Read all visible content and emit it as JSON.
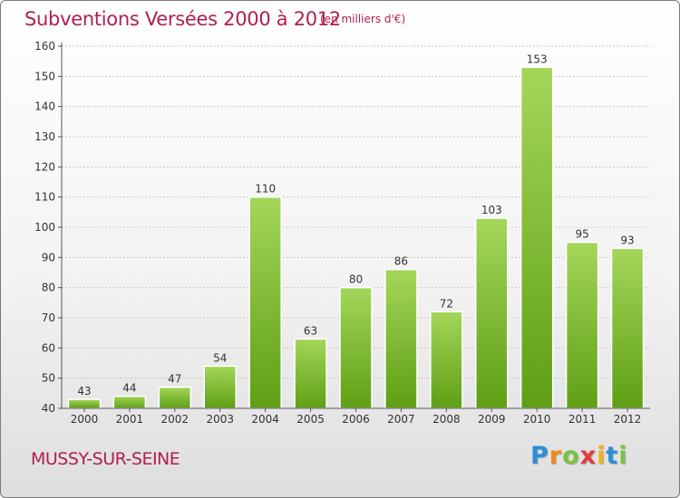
{
  "title": "Subventions Versées 2000 à 2012",
  "unit_note": "(en milliers d'€)",
  "location": "MUSSY-SUR-SEINE",
  "logo": {
    "letters": [
      {
        "char": "P",
        "color": "#2a8fd6"
      },
      {
        "char": "r",
        "color": "#ef8a1a"
      },
      {
        "char": "o",
        "color": "#7cc242"
      },
      {
        "char": "x",
        "color": "#e23b3b"
      },
      {
        "char": "i",
        "color": "#f2b31a"
      },
      {
        "char": "t",
        "color": "#2a8fd6"
      },
      {
        "char": "i",
        "color": "#7cc242"
      }
    ]
  },
  "chart_data": {
    "type": "bar",
    "categories": [
      "2000",
      "2001",
      "2002",
      "2003",
      "2004",
      "2005",
      "2006",
      "2007",
      "2008",
      "2009",
      "2010",
      "2011",
      "2012"
    ],
    "values": [
      43,
      44,
      47,
      54,
      110,
      63,
      80,
      86,
      72,
      103,
      153,
      95,
      93
    ],
    "ylim": [
      40,
      160
    ],
    "yticks": [
      40,
      50,
      60,
      70,
      80,
      90,
      100,
      110,
      120,
      130,
      140,
      150,
      160
    ],
    "grid": true,
    "bar_color_top": "#a4d65a",
    "bar_color_bottom": "#5e9f14"
  }
}
